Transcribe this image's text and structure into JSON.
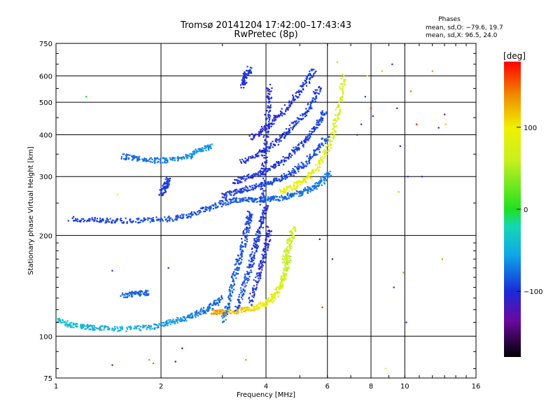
{
  "chart_data": {
    "type": "scatter",
    "title": "Tromsø 20141204 17:42:00–17:43:43",
    "subtitle": "RwPretec (8p)",
    "xlabel": "Frequency [MHz]",
    "ylabel": "Stationary phase Virtual Height [km]",
    "x_scale": "log",
    "y_scale": "log",
    "xlim": [
      1,
      16
    ],
    "ylim": [
      75,
      750
    ],
    "x_ticks": [
      1,
      2,
      4,
      6,
      8,
      10,
      16
    ],
    "x_tick_labels": [
      "1",
      "2",
      "4",
      "6",
      "8",
      "10",
      "16"
    ],
    "y_ticks": [
      75,
      100,
      200,
      300,
      400,
      500,
      600,
      750
    ],
    "y_tick_labels": [
      "75",
      "100",
      "200",
      "300",
      "400",
      "500",
      "600",
      "750"
    ],
    "grid": true,
    "phase_stats": {
      "heading": "Phases",
      "line_o": "mean, sd,O: −79.6, 19.7",
      "line_x": "mean, sd,X:  96.5, 24.0"
    },
    "colorbar": {
      "label": "[deg]",
      "range": [
        -180,
        180
      ],
      "tick_values": [
        100,
        0,
        -100
      ],
      "tick_labels": [
        "100",
        "0",
        "−100"
      ],
      "stops": [
        {
          "value": -180,
          "color": "#000000"
        },
        {
          "value": -135,
          "color": "#6a0aa0"
        },
        {
          "value": -100,
          "color": "#1a2ad8"
        },
        {
          "value": -55,
          "color": "#0fa8e8"
        },
        {
          "value": -20,
          "color": "#14d8b0"
        },
        {
          "value": 0,
          "color": "#20e020"
        },
        {
          "value": 60,
          "color": "#c8f020"
        },
        {
          "value": 100,
          "color": "#f0f000"
        },
        {
          "value": 140,
          "color": "#f08800"
        },
        {
          "value": 180,
          "color": "#ff0000"
        }
      ]
    },
    "series": [
      {
        "name": "",
        "traces": [
          {
            "pts": [
              [
                1.0,
                112
              ],
              [
                1.1,
                108
              ],
              [
                1.2,
                107
              ],
              [
                1.3,
                106
              ],
              [
                1.5,
                105
              ],
              [
                1.8,
                106
              ],
              [
                2.0,
                108
              ],
              [
                2.2,
                111
              ],
              [
                2.4,
                114
              ],
              [
                2.6,
                118
              ],
              [
                2.8,
                123
              ],
              [
                3.0,
                130
              ]
            ],
            "phase": [
              -35,
              -80
            ]
          },
          {
            "pts": [
              [
                2.8,
                118
              ],
              [
                3.0,
                118
              ],
              [
                3.3,
                119
              ],
              [
                3.6,
                121
              ],
              [
                3.9,
                124
              ],
              [
                4.1,
                128
              ],
              [
                4.3,
                135
              ],
              [
                4.45,
                145
              ],
              [
                4.55,
                157
              ],
              [
                4.65,
                172
              ]
            ],
            "phase": [
              140,
              50
            ]
          },
          {
            "pts": [
              [
                4.5,
                165
              ],
              [
                4.6,
                180
              ],
              [
                4.7,
                195
              ],
              [
                4.8,
                210
              ]
            ],
            "phase": [
              60,
              70
            ]
          },
          {
            "pts": [
              [
                1.1,
                224
              ],
              [
                1.3,
                222
              ],
              [
                1.5,
                221
              ],
              [
                1.8,
                222
              ],
              [
                2.1,
                224
              ],
              [
                2.4,
                230
              ],
              [
                2.7,
                240
              ],
              [
                3.0,
                250
              ],
              [
                3.3,
                256
              ],
              [
                3.6,
                256
              ],
              [
                3.9,
                256
              ],
              [
                4.2,
                257
              ],
              [
                4.6,
                262
              ],
              [
                5.0,
                268
              ],
              [
                5.4,
                277
              ],
              [
                5.8,
                290
              ],
              [
                6.1,
                310
              ]
            ],
            "phase": [
              -95,
              -70
            ]
          },
          {
            "pts": [
              [
                3.0,
                262
              ],
              [
                3.3,
                270
              ],
              [
                3.6,
                278
              ],
              [
                4.0,
                285
              ],
              [
                4.4,
                295
              ],
              [
                4.8,
                310
              ],
              [
                5.2,
                330
              ],
              [
                5.6,
                360
              ],
              [
                6.0,
                395
              ]
            ],
            "phase": [
              -95,
              -85
            ]
          },
          {
            "pts": [
              [
                3.2,
                288
              ],
              [
                3.6,
                300
              ],
              [
                4.0,
                312
              ],
              [
                4.4,
                330
              ],
              [
                4.8,
                355
              ],
              [
                5.2,
                385
              ],
              [
                5.6,
                425
              ],
              [
                5.9,
                470
              ]
            ],
            "phase": [
              -100,
              -90
            ]
          },
          {
            "pts": [
              [
                3.4,
                330
              ],
              [
                3.8,
                350
              ],
              [
                4.2,
                375
              ],
              [
                4.6,
                405
              ],
              [
                5.0,
                445
              ],
              [
                5.4,
                495
              ],
              [
                5.7,
                560
              ]
            ],
            "phase": [
              -100,
              -95
            ]
          },
          {
            "pts": [
              [
                3.6,
                390
              ],
              [
                4.0,
                420
              ],
              [
                4.4,
                460
              ],
              [
                4.8,
                510
              ],
              [
                5.2,
                570
              ],
              [
                5.5,
                630
              ]
            ],
            "phase": [
              -105,
              -95
            ]
          },
          {
            "pts": [
              [
                4.4,
                270
              ],
              [
                4.8,
                280
              ],
              [
                5.2,
                295
              ],
              [
                5.6,
                320
              ],
              [
                6.0,
                360
              ],
              [
                6.3,
                420
              ],
              [
                6.5,
                500
              ],
              [
                6.7,
                600
              ]
            ],
            "phase": [
              95,
              70
            ]
          },
          {
            "pts": [
              [
                3.0,
                110
              ],
              [
                3.15,
                130
              ],
              [
                3.25,
                150
              ],
              [
                3.35,
                170
              ],
              [
                3.45,
                190
              ],
              [
                3.55,
                215
              ],
              [
                3.6,
                235
              ]
            ],
            "phase": [
              -75,
              -95
            ]
          },
          {
            "pts": [
              [
                3.3,
                120
              ],
              [
                3.45,
                140
              ],
              [
                3.6,
                160
              ],
              [
                3.7,
                180
              ],
              [
                3.8,
                200
              ],
              [
                3.9,
                225
              ],
              [
                4.0,
                245
              ]
            ],
            "phase": [
              -85,
              -100
            ]
          },
          {
            "pts": [
              [
                3.6,
                125
              ],
              [
                3.75,
                145
              ],
              [
                3.9,
                165
              ],
              [
                4.0,
                185
              ],
              [
                4.1,
                210
              ]
            ],
            "phase": [
              -95,
              -105
            ]
          },
          {
            "pts": [
              [
                3.4,
                560
              ],
              [
                3.5,
                600
              ],
              [
                3.6,
                630
              ]
            ],
            "phase": [
              -100,
              -95
            ]
          },
          {
            "pts": [
              [
                1.55,
                345
              ],
              [
                1.7,
                340
              ],
              [
                1.9,
                335
              ],
              [
                2.1,
                336
              ],
              [
                2.4,
                345
              ],
              [
                2.6,
                360
              ],
              [
                2.8,
                370
              ]
            ],
            "phase": [
              -80,
              -60
            ]
          },
          {
            "pts": [
              [
                1.55,
                132
              ],
              [
                1.7,
                134
              ],
              [
                1.85,
                135
              ]
            ],
            "phase": [
              -80,
              -80
            ]
          },
          {
            "pts": [
              [
                2.0,
                262
              ],
              [
                2.05,
                280
              ],
              [
                2.1,
                295
              ]
            ],
            "phase": [
              -95,
              -95
            ]
          },
          {
            "pts": [
              [
                3.9,
                250
              ],
              [
                3.95,
                320
              ],
              [
                4.0,
                400
              ],
              [
                4.05,
                480
              ],
              [
                4.1,
                560
              ]
            ],
            "phase": [
              -100,
              -100
            ]
          }
        ],
        "scatter": [
          {
            "x": 1.22,
            "y": 520,
            "phase": 0
          },
          {
            "x": 1.45,
            "y": 82,
            "phase": -100
          },
          {
            "x": 1.45,
            "y": 157,
            "phase": -100
          },
          {
            "x": 1.5,
            "y": 265,
            "phase": 95
          },
          {
            "x": 1.85,
            "y": 85,
            "phase": 140
          },
          {
            "x": 1.9,
            "y": 83,
            "phase": 150
          },
          {
            "x": 2.1,
            "y": 160,
            "phase": -100
          },
          {
            "x": 2.2,
            "y": 84,
            "phase": -140
          },
          {
            "x": 2.3,
            "y": 92,
            "phase": -150
          },
          {
            "x": 3.5,
            "y": 85,
            "phase": 140
          },
          {
            "x": 5.7,
            "y": 195,
            "phase": -150
          },
          {
            "x": 5.8,
            "y": 122,
            "phase": 170
          },
          {
            "x": 6.2,
            "y": 170,
            "phase": -100
          },
          {
            "x": 6.4,
            "y": 660,
            "phase": 120
          },
          {
            "x": 7.3,
            "y": 400,
            "phase": -100
          },
          {
            "x": 7.5,
            "y": 430,
            "phase": -100
          },
          {
            "x": 7.7,
            "y": 520,
            "phase": -90
          },
          {
            "x": 7.8,
            "y": 600,
            "phase": 100
          },
          {
            "x": 8.0,
            "y": 480,
            "phase": 170
          },
          {
            "x": 8.1,
            "y": 455,
            "phase": -100
          },
          {
            "x": 8.6,
            "y": 620,
            "phase": 120
          },
          {
            "x": 8.8,
            "y": 80,
            "phase": 90
          },
          {
            "x": 9.2,
            "y": 650,
            "phase": -100
          },
          {
            "x": 9.3,
            "y": 140,
            "phase": -100
          },
          {
            "x": 9.5,
            "y": 480,
            "phase": -100
          },
          {
            "x": 9.6,
            "y": 270,
            "phase": 120
          },
          {
            "x": 9.7,
            "y": 370,
            "phase": -140
          },
          {
            "x": 9.9,
            "y": 155,
            "phase": 140
          },
          {
            "x": 10.1,
            "y": 110,
            "phase": -120
          },
          {
            "x": 10.2,
            "y": 300,
            "phase": -100
          },
          {
            "x": 10.4,
            "y": 540,
            "phase": 150
          },
          {
            "x": 10.8,
            "y": 430,
            "phase": 170
          },
          {
            "x": 11.2,
            "y": 300,
            "phase": -120
          },
          {
            "x": 12.0,
            "y": 620,
            "phase": 140
          },
          {
            "x": 12.5,
            "y": 420,
            "phase": -100
          },
          {
            "x": 12.8,
            "y": 170,
            "phase": 140
          },
          {
            "x": 13.0,
            "y": 460,
            "phase": -120
          },
          {
            "x": 13.1,
            "y": 430,
            "phase": 120
          }
        ]
      }
    ]
  }
}
